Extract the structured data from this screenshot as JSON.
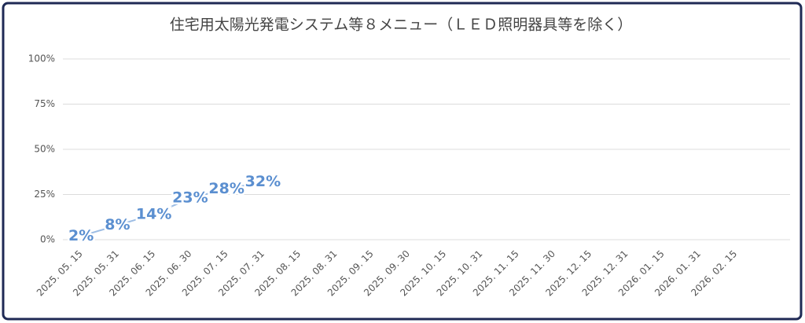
{
  "chart_data": {
    "type": "line",
    "title": "住宅用太陽光発電システム等８メニュー（ＬＥＤ照明器具等を除く）",
    "categories": [
      "2025. 05. 15",
      "2025. 05. 31",
      "2025. 06. 15",
      "2025. 06. 30",
      "2025. 07. 15",
      "2025. 07. 31",
      "2025. 08. 15",
      "2025. 08. 31",
      "2025. 09. 15",
      "2025. 09. 30",
      "2025. 10. 15",
      "2025. 10. 31",
      "2025. 11. 15",
      "2025. 11. 30",
      "2025. 12. 15",
      "2025. 12. 31",
      "2026. 01. 15",
      "2026. 01. 31",
      "2026. 02. 15",
      null
    ],
    "series": [
      {
        "name": null,
        "color": "#5b8fd0",
        "values": [
          2,
          8,
          14,
          23,
          28,
          32,
          null,
          null,
          null,
          null,
          null,
          null,
          null,
          null,
          null,
          null,
          null,
          null,
          null,
          null
        ],
        "value_labels": [
          "2%",
          "8%",
          "14%",
          "23%",
          "28%",
          "32%",
          null,
          null,
          null,
          null,
          null,
          null,
          null,
          null,
          null,
          null,
          null,
          null,
          null,
          null
        ]
      }
    ],
    "ylim": [
      0,
      100
    ],
    "yticks": [
      {
        "value": 0,
        "label": "0%"
      },
      {
        "value": 25,
        "label": "25%"
      },
      {
        "value": 50,
        "label": "50%"
      },
      {
        "value": 75,
        "label": "75%"
      },
      {
        "value": 100,
        "label": "100%"
      }
    ],
    "grid": true
  }
}
